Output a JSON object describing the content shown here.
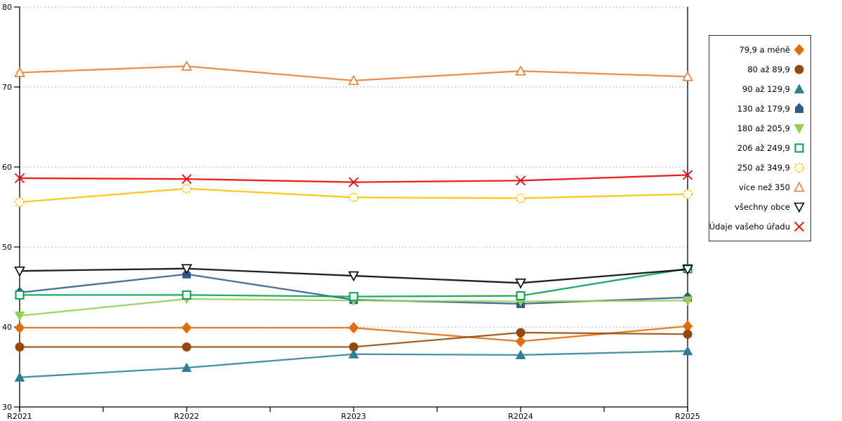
{
  "chart_data": {
    "type": "line",
    "title": "",
    "xlabel": "",
    "ylabel": "",
    "x": [
      "R2021",
      "R2022",
      "R2023",
      "R2024",
      "R2025"
    ],
    "ylim": [
      30,
      80
    ],
    "yticks": [
      30,
      40,
      50,
      60,
      70,
      80
    ],
    "grid": "horizontal-dashed",
    "gridline_color": "#b3b3b3",
    "axis_color": "#000000",
    "legend_position": "right",
    "series": [
      {
        "name": "79,9 a méně",
        "marker": "diamond",
        "style": "filled",
        "color": "#E36C0A",
        "values": [
          39.9,
          39.9,
          39.9,
          38.2,
          40.1
        ]
      },
      {
        "name": "80 až 89,9",
        "marker": "circle",
        "style": "filled",
        "color": "#96480B",
        "values": [
          37.5,
          37.5,
          37.5,
          39.3,
          39.1
        ]
      },
      {
        "name": "90 až 129,9",
        "marker": "triangle-up",
        "style": "filled",
        "color": "#2E7F95",
        "values": [
          33.7,
          34.9,
          36.6,
          36.5,
          37.0
        ]
      },
      {
        "name": "130 až 179,9",
        "marker": "pentagon",
        "style": "filled",
        "color": "#2F5B8C",
        "values": [
          44.3,
          46.6,
          43.4,
          42.9,
          43.7
        ]
      },
      {
        "name": "180 až 205,9",
        "marker": "triangle-down",
        "style": "filled",
        "color": "#92D050",
        "values": [
          41.4,
          43.5,
          43.3,
          43.2,
          43.3
        ]
      },
      {
        "name": "206 až 249,9",
        "marker": "square",
        "style": "open",
        "color": "#00A050",
        "values": [
          44.0,
          44.0,
          43.8,
          43.9,
          47.3
        ]
      },
      {
        "name": "250 až 349,9",
        "marker": "circle-dashed",
        "style": "open",
        "color": "#FFC000",
        "values": [
          55.6,
          57.3,
          56.2,
          56.1,
          56.6
        ]
      },
      {
        "name": "více než 350",
        "marker": "triangle-up",
        "style": "open",
        "color": "#ED7D31",
        "values": [
          71.8,
          72.6,
          70.8,
          72.0,
          71.3
        ]
      },
      {
        "name": "všechny obce",
        "marker": "triangle-down",
        "style": "open",
        "color": "#000000",
        "values": [
          47.0,
          47.3,
          46.4,
          45.5,
          47.2
        ]
      },
      {
        "name": "Údaje vašeho úřadu",
        "marker": "x-cross",
        "style": "open",
        "color": "#EE0000",
        "values": [
          58.6,
          58.5,
          58.1,
          58.3,
          59.0
        ]
      }
    ]
  }
}
